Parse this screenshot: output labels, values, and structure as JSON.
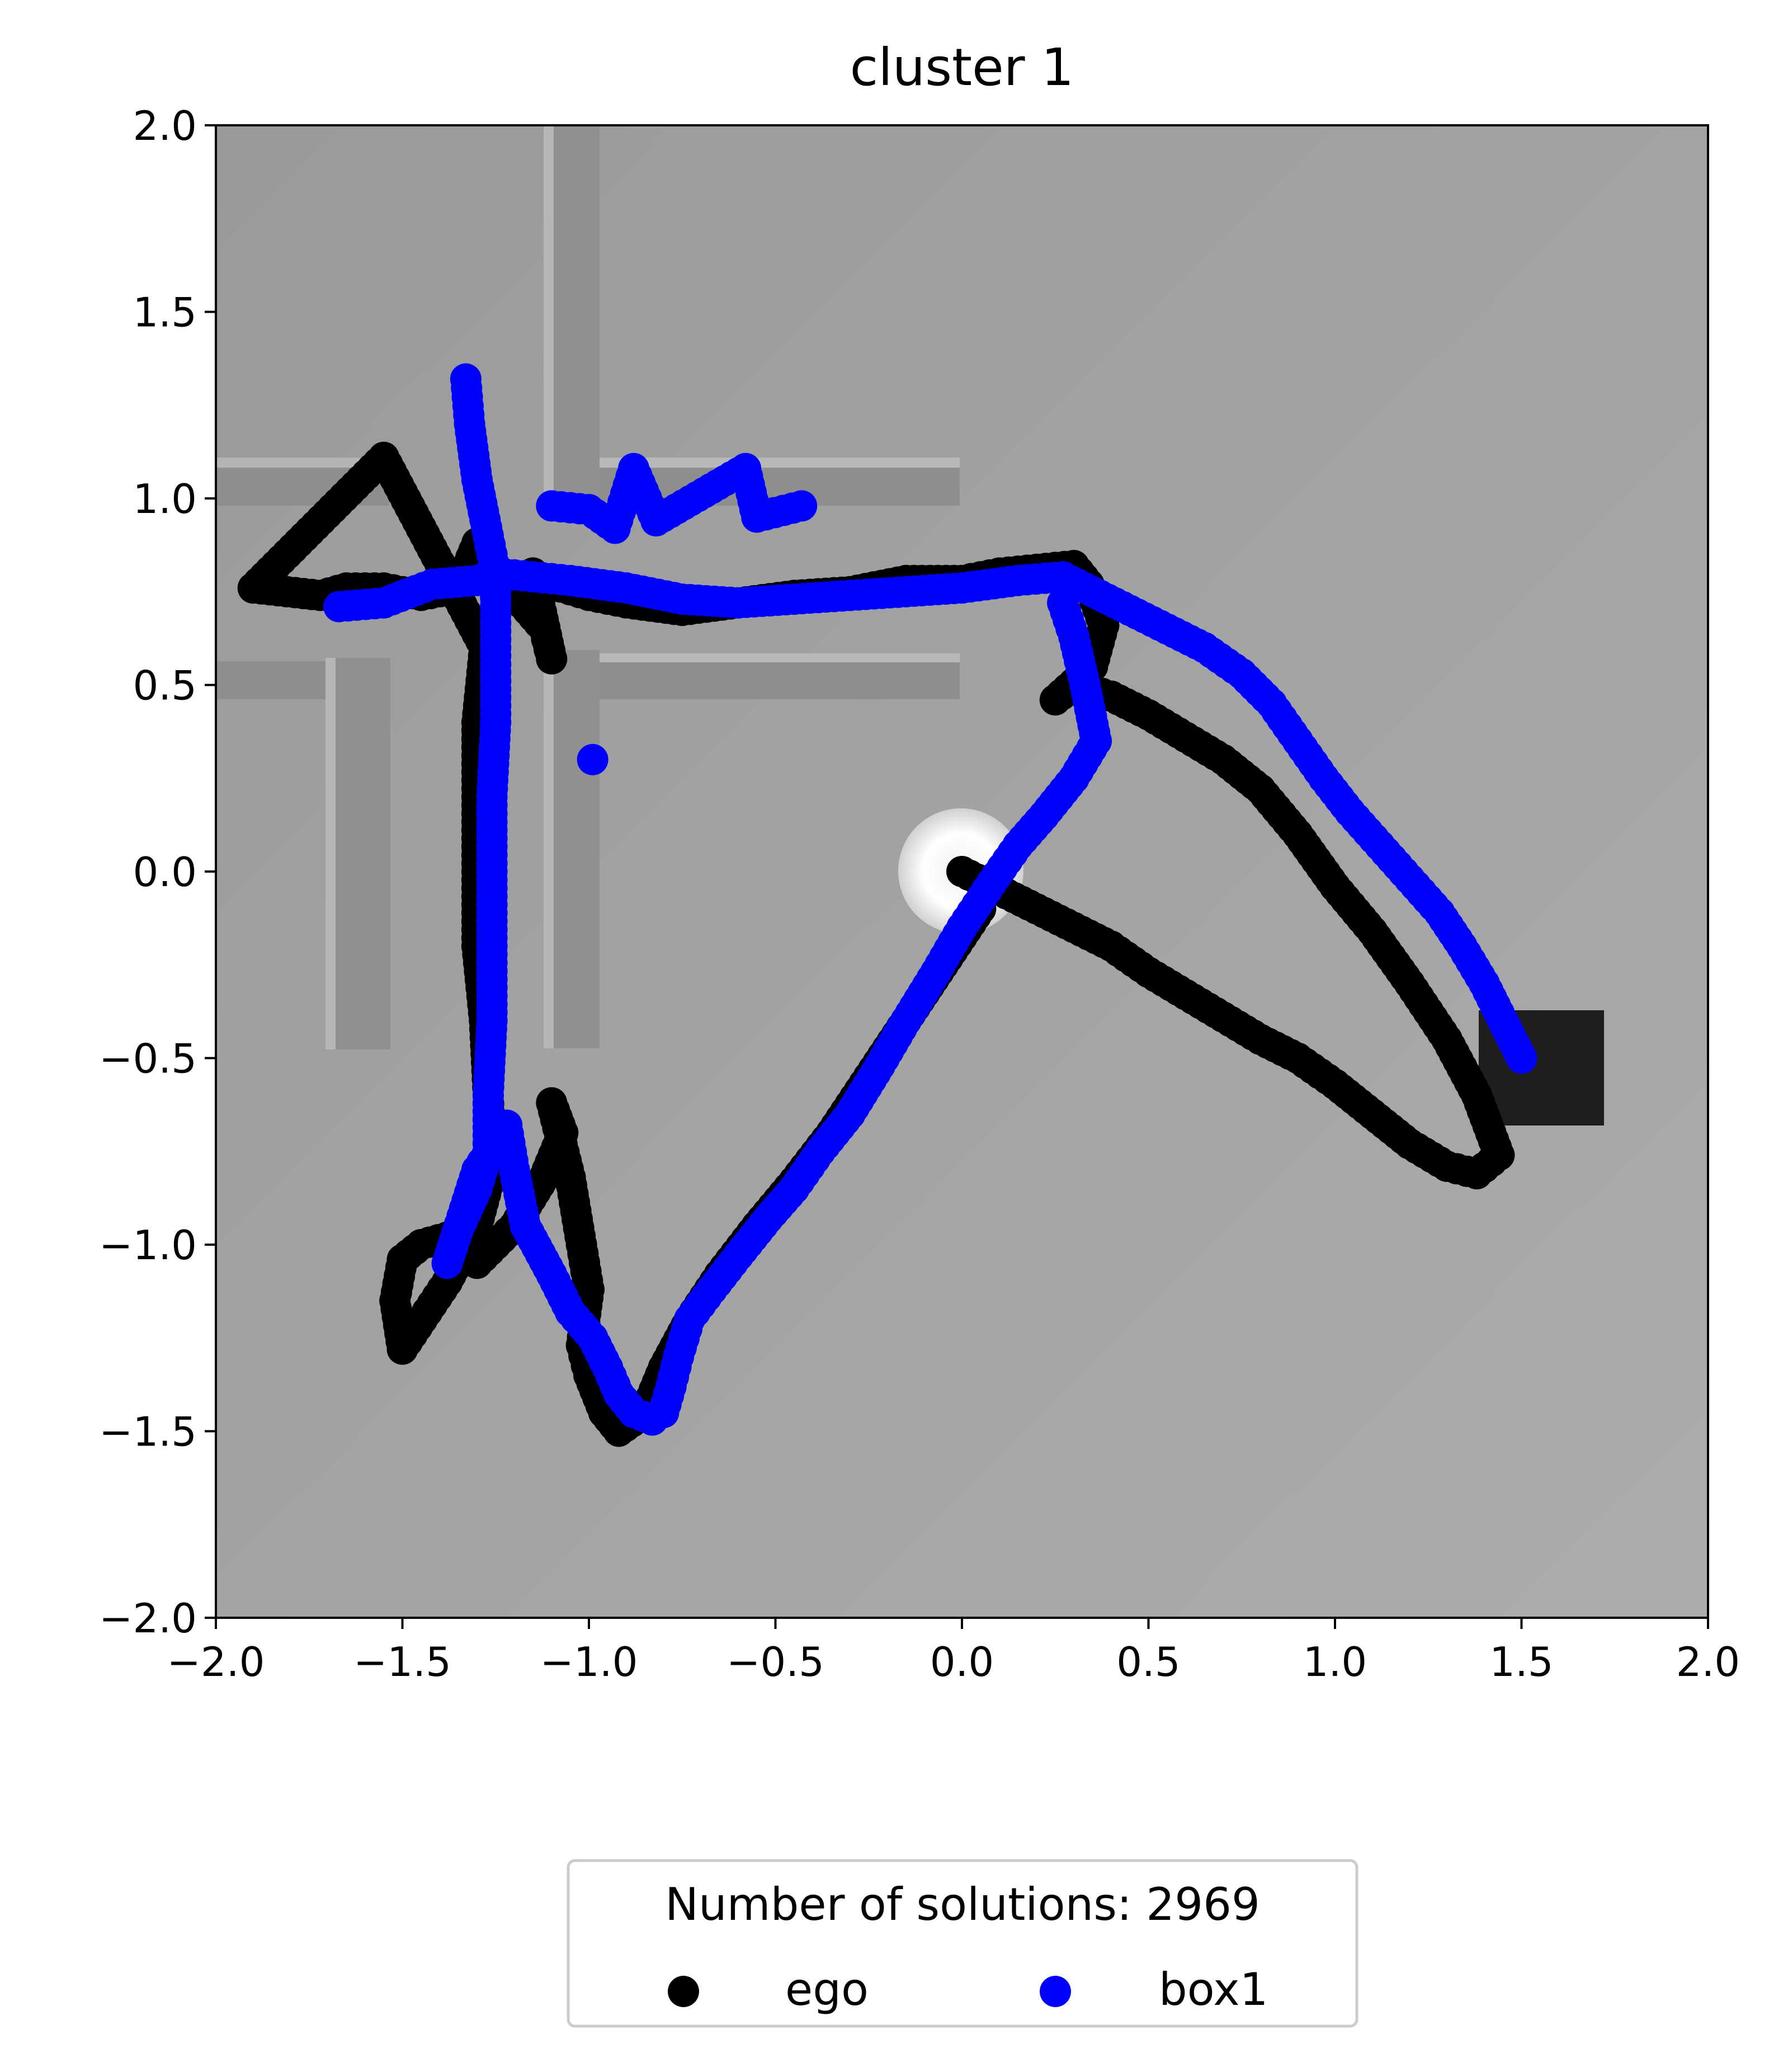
{
  "chart_data": {
    "type": "scatter",
    "title": "cluster 1",
    "xlabel": "",
    "ylabel": "",
    "xlim": [
      -2.0,
      2.0
    ],
    "ylim": [
      -2.0,
      2.0
    ],
    "xticks": [
      "−2.0",
      "−1.5",
      "−1.0",
      "−0.5",
      "0.0",
      "0.5",
      "1.0",
      "1.5",
      "2.0"
    ],
    "yticks": [
      "2.0",
      "1.5",
      "1.0",
      "0.5",
      "0.0",
      "−0.5",
      "−1.0",
      "−1.5",
      "−2.0"
    ],
    "grid": false,
    "background": "grey top-down scene render with maze walls",
    "legend": {
      "title": "Number of solutions: 2969",
      "placement": "bottom-center, below plot",
      "entries": [
        "ego",
        "box1"
      ]
    },
    "series": [
      {
        "name": "ego",
        "color": "#000000",
        "points": [
          [
            0.0,
            0.0
          ],
          [
            0.1,
            -0.05
          ],
          [
            0.2,
            -0.1
          ],
          [
            0.3,
            -0.15
          ],
          [
            0.4,
            -0.2
          ],
          [
            0.5,
            -0.27
          ],
          [
            0.6,
            -0.33
          ],
          [
            0.7,
            -0.39
          ],
          [
            0.8,
            -0.45
          ],
          [
            0.9,
            -0.5
          ],
          [
            1.0,
            -0.57
          ],
          [
            1.1,
            -0.65
          ],
          [
            1.2,
            -0.73
          ],
          [
            1.3,
            -0.79
          ],
          [
            1.38,
            -0.81
          ],
          [
            1.44,
            -0.76
          ],
          [
            1.38,
            -0.6
          ],
          [
            1.3,
            -0.45
          ],
          [
            1.2,
            -0.3
          ],
          [
            1.1,
            -0.16
          ],
          [
            1.0,
            -0.04
          ],
          [
            0.9,
            0.1
          ],
          [
            0.8,
            0.22
          ],
          [
            0.7,
            0.3
          ],
          [
            0.6,
            0.36
          ],
          [
            0.5,
            0.42
          ],
          [
            0.4,
            0.47
          ],
          [
            0.3,
            0.5
          ],
          [
            0.25,
            0.46
          ],
          [
            0.35,
            0.55
          ],
          [
            0.38,
            0.66
          ],
          [
            0.34,
            0.77
          ],
          [
            0.3,
            0.82
          ],
          [
            0.2,
            0.81
          ],
          [
            0.1,
            0.8
          ],
          [
            0.0,
            0.78
          ],
          [
            -0.15,
            0.78
          ],
          [
            -0.3,
            0.75
          ],
          [
            -0.45,
            0.74
          ],
          [
            -0.6,
            0.72
          ],
          [
            -0.75,
            0.7
          ],
          [
            -0.9,
            0.72
          ],
          [
            -1.0,
            0.74
          ],
          [
            -1.1,
            0.77
          ],
          [
            -1.15,
            0.8
          ],
          [
            -1.1,
            0.57
          ],
          [
            -1.12,
            0.65
          ],
          [
            -1.25,
            0.8
          ],
          [
            -1.3,
            0.88
          ],
          [
            -1.35,
            0.76
          ],
          [
            -1.45,
            0.74
          ],
          [
            -1.55,
            0.76
          ],
          [
            -1.65,
            0.76
          ],
          [
            -1.72,
            0.74
          ],
          [
            -1.9,
            0.76
          ],
          [
            -1.55,
            1.11
          ],
          [
            -1.28,
            0.6
          ],
          [
            -1.3,
            0.4
          ],
          [
            -1.3,
            0.2
          ],
          [
            -1.3,
            0.0
          ],
          [
            -1.3,
            -0.2
          ],
          [
            -1.28,
            -0.4
          ],
          [
            -1.27,
            -0.6
          ],
          [
            -1.26,
            -0.8
          ],
          [
            -1.3,
            -0.95
          ],
          [
            -1.38,
            -1.1
          ],
          [
            -1.46,
            -1.22
          ],
          [
            -1.5,
            -1.28
          ],
          [
            -1.52,
            -1.15
          ],
          [
            -1.5,
            -1.04
          ],
          [
            -1.45,
            -1.0
          ],
          [
            -1.38,
            -0.98
          ],
          [
            -1.3,
            -1.05
          ],
          [
            -1.2,
            -0.95
          ],
          [
            -1.12,
            -0.82
          ],
          [
            -1.07,
            -0.7
          ],
          [
            -1.1,
            -0.62
          ],
          [
            -1.05,
            -0.82
          ],
          [
            -1.02,
            -1.0
          ],
          [
            -1.0,
            -1.12
          ],
          [
            -1.02,
            -1.27
          ],
          [
            -1.0,
            -1.35
          ],
          [
            -0.96,
            -1.45
          ],
          [
            -0.92,
            -1.5
          ],
          [
            -0.85,
            -1.45
          ],
          [
            -0.8,
            -1.33
          ],
          [
            -0.73,
            -1.2
          ],
          [
            -0.65,
            -1.08
          ],
          [
            -0.55,
            -0.95
          ],
          [
            -0.45,
            -0.83
          ],
          [
            -0.35,
            -0.7
          ],
          [
            -0.25,
            -0.55
          ],
          [
            -0.15,
            -0.4
          ],
          [
            -0.05,
            -0.25
          ],
          [
            0.05,
            -0.1
          ]
        ]
      },
      {
        "name": "box1",
        "color": "#0000ff",
        "points": [
          [
            1.5,
            -0.5
          ],
          [
            1.45,
            -0.4
          ],
          [
            1.4,
            -0.3
          ],
          [
            1.34,
            -0.2
          ],
          [
            1.28,
            -0.11
          ],
          [
            1.2,
            -0.02
          ],
          [
            1.12,
            0.07
          ],
          [
            1.04,
            0.16
          ],
          [
            0.97,
            0.25
          ],
          [
            0.9,
            0.35
          ],
          [
            0.83,
            0.45
          ],
          [
            0.75,
            0.53
          ],
          [
            0.65,
            0.6
          ],
          [
            0.55,
            0.65
          ],
          [
            0.45,
            0.7
          ],
          [
            0.35,
            0.75
          ],
          [
            0.27,
            0.79
          ],
          [
            0.15,
            0.78
          ],
          [
            0.0,
            0.76
          ],
          [
            -0.15,
            0.75
          ],
          [
            -0.3,
            0.74
          ],
          [
            -0.45,
            0.73
          ],
          [
            -0.6,
            0.72
          ],
          [
            -0.75,
            0.73
          ],
          [
            -0.9,
            0.76
          ],
          [
            -1.05,
            0.78
          ],
          [
            -1.15,
            0.79
          ],
          [
            -1.25,
            0.8
          ],
          [
            -1.3,
            0.78
          ],
          [
            -1.42,
            0.77
          ],
          [
            -1.55,
            0.72
          ],
          [
            -1.67,
            0.71
          ],
          [
            -1.1,
            0.98
          ],
          [
            -1.0,
            0.97
          ],
          [
            -0.93,
            0.92
          ],
          [
            -0.88,
            1.08
          ],
          [
            -0.82,
            0.94
          ],
          [
            -0.58,
            1.08
          ],
          [
            -0.55,
            0.95
          ],
          [
            -0.43,
            0.98
          ],
          [
            -0.99,
            0.3
          ],
          [
            -1.33,
            1.32
          ],
          [
            -1.32,
            1.2
          ],
          [
            -1.3,
            1.05
          ],
          [
            -1.27,
            0.9
          ],
          [
            -1.25,
            0.8
          ],
          [
            -1.25,
            0.6
          ],
          [
            -1.25,
            0.4
          ],
          [
            -1.26,
            0.2
          ],
          [
            -1.26,
            0.0
          ],
          [
            -1.26,
            -0.2
          ],
          [
            -1.26,
            -0.4
          ],
          [
            -1.27,
            -0.6
          ],
          [
            -1.27,
            -0.75
          ],
          [
            -1.3,
            -0.85
          ],
          [
            -1.35,
            -0.96
          ],
          [
            -1.38,
            -1.05
          ],
          [
            -1.3,
            -0.8
          ],
          [
            -1.22,
            -0.68
          ],
          [
            -1.2,
            -0.8
          ],
          [
            -1.17,
            -0.95
          ],
          [
            -1.1,
            -1.08
          ],
          [
            -1.05,
            -1.18
          ],
          [
            -0.99,
            -1.25
          ],
          [
            -0.95,
            -1.33
          ],
          [
            -0.92,
            -1.4
          ],
          [
            -0.88,
            -1.45
          ],
          [
            -0.83,
            -1.47
          ],
          [
            -0.8,
            -1.45
          ],
          [
            -0.78,
            -1.38
          ],
          [
            -0.76,
            -1.3
          ],
          [
            -0.73,
            -1.2
          ],
          [
            -0.67,
            -1.12
          ],
          [
            -0.6,
            -1.03
          ],
          [
            -0.52,
            -0.93
          ],
          [
            -0.45,
            -0.85
          ],
          [
            -0.38,
            -0.75
          ],
          [
            -0.3,
            -0.65
          ],
          [
            -0.22,
            -0.52
          ],
          [
            -0.15,
            -0.4
          ],
          [
            -0.07,
            -0.27
          ],
          [
            0.0,
            -0.15
          ],
          [
            0.08,
            -0.03
          ],
          [
            0.15,
            0.07
          ],
          [
            0.22,
            0.15
          ],
          [
            0.3,
            0.25
          ],
          [
            0.36,
            0.35
          ],
          [
            0.33,
            0.5
          ],
          [
            0.3,
            0.63
          ],
          [
            0.27,
            0.72
          ]
        ]
      }
    ]
  }
}
